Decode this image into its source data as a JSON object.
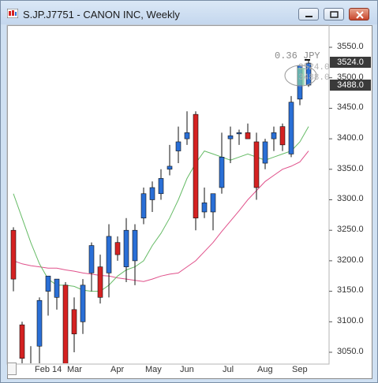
{
  "window": {
    "title": "S.JP.J7751 - CANON INC, Weekly"
  },
  "colors": {
    "up": "#2a6fd6",
    "down": "#d42222",
    "ma_short": "#66bb66",
    "ma_long": "#e0508a",
    "label_box": "#3a3a3a"
  },
  "price_axis": {
    "ticks": [
      "3550.0",
      "3500.0",
      "3450.0",
      "3400.0",
      "3350.0",
      "3300.0",
      "3250.0",
      "3200.0",
      "3150.0",
      "3100.0",
      "3050.0"
    ],
    "current_high_label": "3524.0",
    "current_low_label": "3488.0"
  },
  "time_axis": {
    "labels": [
      "Feb 14",
      "Mar",
      "Apr",
      "May",
      "Jun",
      "Jul",
      "Aug",
      "Sep"
    ]
  },
  "annotation": {
    "delta": "0.36",
    "unit": "JPY",
    "high": "3524.0",
    "low": "3488.0"
  },
  "chart_data": {
    "type": "candlestick",
    "title": "S.JP.J7751 - CANON INC, Weekly",
    "ylim": [
      3020,
      3580
    ],
    "candles": [
      {
        "o": 3250,
        "h": 3255,
        "l": 3150,
        "c": 3170
      },
      {
        "o": 3095,
        "h": 3100,
        "l": 3020,
        "c": 3040
      },
      {
        "o": 3020,
        "h": 3060,
        "l": 3010,
        "c": 3030
      },
      {
        "o": 3060,
        "h": 3140,
        "l": 3020,
        "c": 3135
      },
      {
        "o": 3150,
        "h": 3175,
        "l": 3110,
        "c": 3175
      },
      {
        "o": 3140,
        "h": 3170,
        "l": 3120,
        "c": 3170
      },
      {
        "o": 3160,
        "h": 3165,
        "l": 3020,
        "c": 3030
      },
      {
        "o": 3120,
        "h": 3140,
        "l": 3050,
        "c": 3080
      },
      {
        "o": 3100,
        "h": 3170,
        "l": 3080,
        "c": 3160
      },
      {
        "o": 3180,
        "h": 3230,
        "l": 3150,
        "c": 3225
      },
      {
        "o": 3190,
        "h": 3210,
        "l": 3130,
        "c": 3140
      },
      {
        "o": 3180,
        "h": 3260,
        "l": 3140,
        "c": 3240
      },
      {
        "o": 3230,
        "h": 3240,
        "l": 3200,
        "c": 3210
      },
      {
        "o": 3190,
        "h": 3270,
        "l": 3165,
        "c": 3250
      },
      {
        "o": 3200,
        "h": 3260,
        "l": 3160,
        "c": 3250
      },
      {
        "o": 3270,
        "h": 3320,
        "l": 3260,
        "c": 3310
      },
      {
        "o": 3300,
        "h": 3330,
        "l": 3280,
        "c": 3320
      },
      {
        "o": 3310,
        "h": 3350,
        "l": 3300,
        "c": 3335
      },
      {
        "o": 3350,
        "h": 3390,
        "l": 3340,
        "c": 3355
      },
      {
        "o": 3380,
        "h": 3420,
        "l": 3360,
        "c": 3395
      },
      {
        "o": 3400,
        "h": 3445,
        "l": 3390,
        "c": 3410
      },
      {
        "o": 3440,
        "h": 3445,
        "l": 3250,
        "c": 3270
      },
      {
        "o": 3280,
        "h": 3320,
        "l": 3270,
        "c": 3295
      },
      {
        "o": 3280,
        "h": 3310,
        "l": 3250,
        "c": 3310
      },
      {
        "o": 3320,
        "h": 3410,
        "l": 3310,
        "c": 3370
      },
      {
        "o": 3400,
        "h": 3420,
        "l": 3360,
        "c": 3405
      },
      {
        "o": 3410,
        "h": 3415,
        "l": 3390,
        "c": 3410
      },
      {
        "o": 3410,
        "h": 3425,
        "l": 3400,
        "c": 3400
      },
      {
        "o": 3395,
        "h": 3410,
        "l": 3300,
        "c": 3320
      },
      {
        "o": 3360,
        "h": 3400,
        "l": 3350,
        "c": 3395
      },
      {
        "o": 3400,
        "h": 3420,
        "l": 3380,
        "c": 3410
      },
      {
        "o": 3420,
        "h": 3425,
        "l": 3380,
        "c": 3390
      },
      {
        "o": 3375,
        "h": 3470,
        "l": 3370,
        "c": 3460
      },
      {
        "o": 3465,
        "h": 3520,
        "l": 3455,
        "c": 3520
      },
      {
        "o": 3488,
        "h": 3530,
        "l": 3485,
        "c": 3524
      }
    ],
    "ma_short": [
      3310,
      3270,
      3230,
      3195,
      3170,
      3160,
      3160,
      3158,
      3152,
      3150,
      3150,
      3160,
      3175,
      3185,
      3190,
      3200,
      3225,
      3245,
      3270,
      3300,
      3335,
      3360,
      3380,
      3375,
      3370,
      3365,
      3370,
      3375,
      3370,
      3365,
      3370,
      3375,
      3380,
      3395,
      3420
    ],
    "ma_long": [
      3200,
      3195,
      3192,
      3190,
      3188,
      3188,
      3185,
      3183,
      3180,
      3178,
      3176,
      3175,
      3172,
      3170,
      3168,
      3166,
      3170,
      3175,
      3178,
      3180,
      3190,
      3200,
      3215,
      3230,
      3248,
      3265,
      3282,
      3300,
      3315,
      3330,
      3340,
      3350,
      3355,
      3362,
      3380
    ]
  }
}
